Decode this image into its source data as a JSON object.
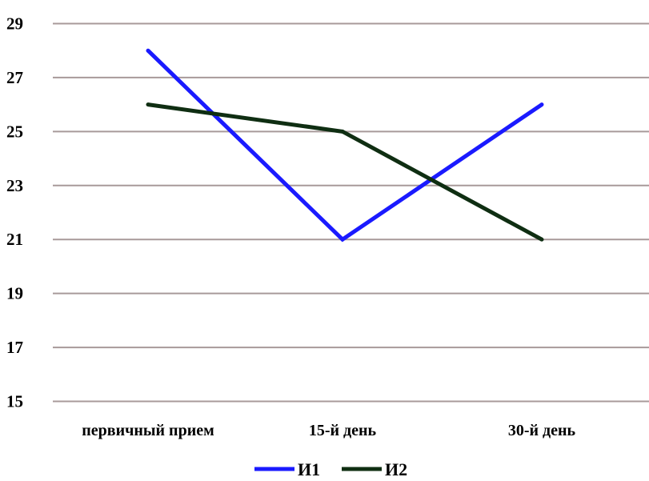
{
  "chart_data": {
    "type": "line",
    "categories": [
      "первичный прием",
      "15-й день",
      "30-й день"
    ],
    "series": [
      {
        "name": "И1",
        "values": [
          28,
          21,
          26
        ],
        "color": "#1a1aff"
      },
      {
        "name": "И2",
        "values": [
          26,
          25,
          21
        ],
        "color": "#0f2e12"
      }
    ],
    "y_ticks": [
      "15",
      "17",
      "19",
      "21",
      "23",
      "25",
      "27",
      "29"
    ],
    "ylim": [
      15,
      29
    ],
    "grid": true,
    "gridline_color": "#a89a9a",
    "legend_position": "bottom"
  }
}
